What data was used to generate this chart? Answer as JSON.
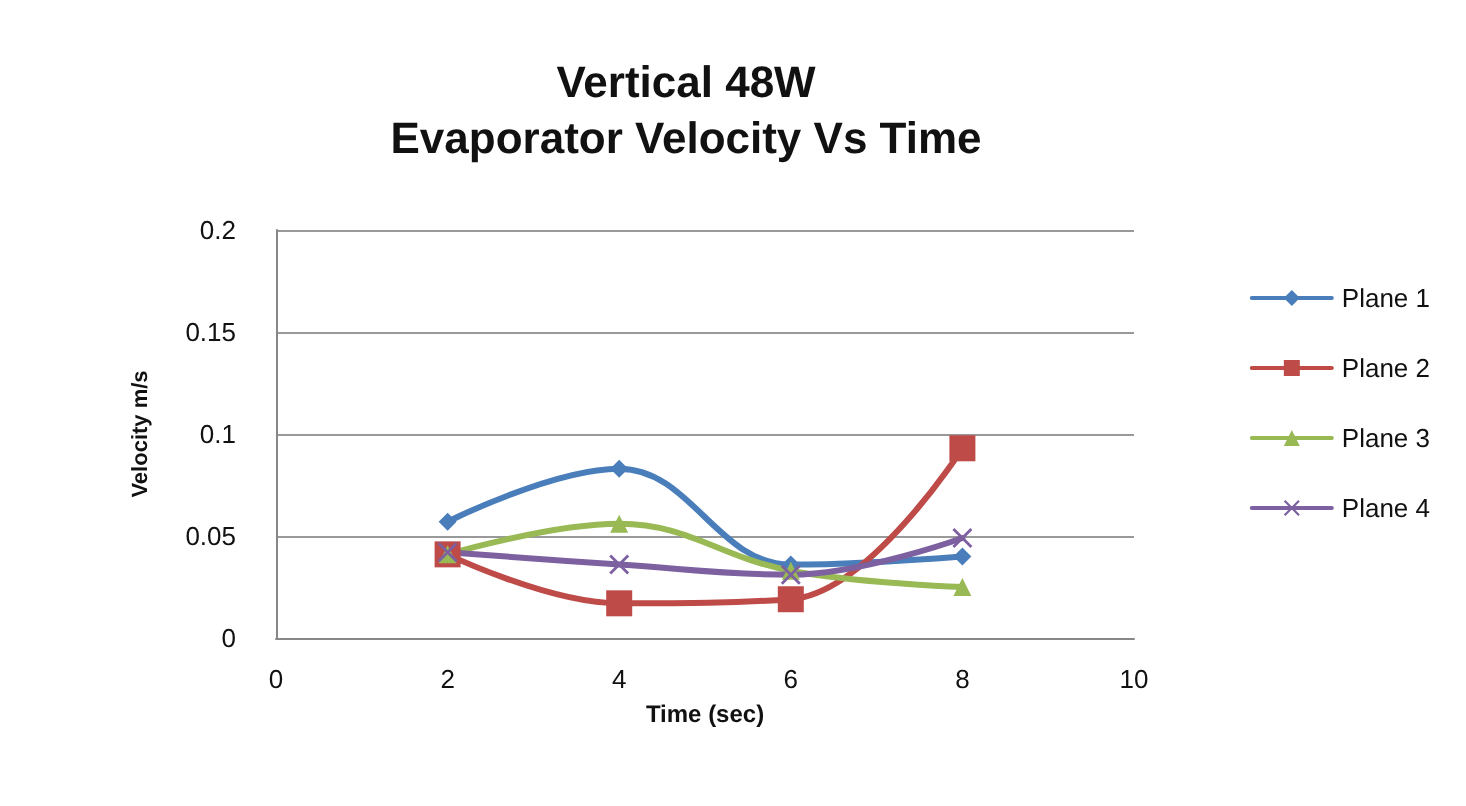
{
  "chart_data": {
    "type": "line",
    "title": "Vertical 48W\nEvaporator Velocity Vs Time",
    "xlabel": "Time (sec)",
    "ylabel": "Velocity m/s",
    "x": [
      2,
      4,
      6,
      8
    ],
    "series": [
      {
        "name": "Plane 1",
        "color": "#4a7ebb",
        "marker": "diamond",
        "values": [
          0.057,
          0.083,
          0.036,
          0.04
        ]
      },
      {
        "name": "Plane 2",
        "color": "#be4b48",
        "marker": "square",
        "values": [
          0.041,
          0.017,
          0.019,
          0.093
        ]
      },
      {
        "name": "Plane 3",
        "color": "#98b954",
        "marker": "triangle",
        "values": [
          0.041,
          0.056,
          0.033,
          0.025
        ]
      },
      {
        "name": "Plane 4",
        "color": "#7d60a0",
        "marker": "cross",
        "values": [
          0.042,
          0.036,
          0.031,
          0.049
        ]
      }
    ],
    "xlim": [
      0,
      10
    ],
    "xticks": [
      0,
      2,
      4,
      6,
      8,
      10
    ],
    "ylim": [
      0,
      0.2
    ],
    "yticks": [
      0,
      0.05,
      0.1,
      0.15,
      0.2
    ],
    "grid": "y",
    "legend": "right"
  }
}
